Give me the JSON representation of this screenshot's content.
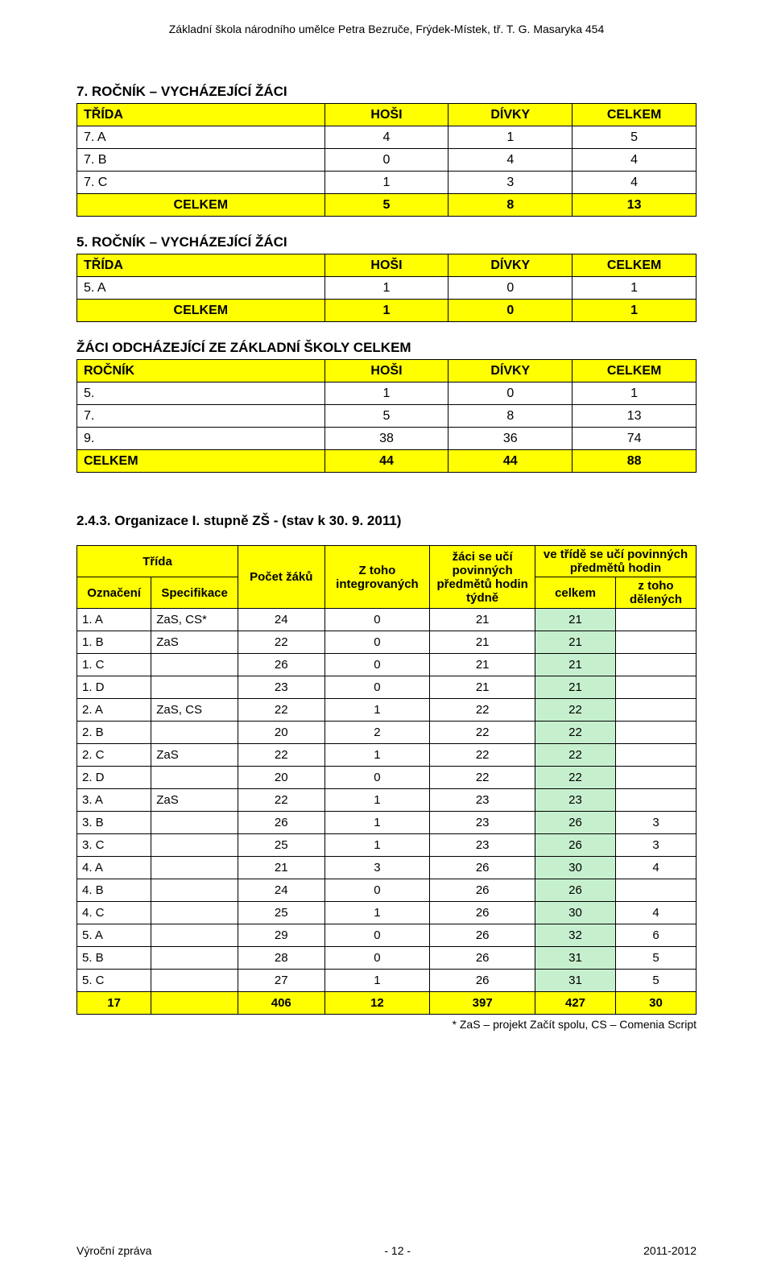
{
  "header": "Základní škola národního umělce Petra Bezruče, Frýdek-Místek, tř. T. G. Masaryka 454",
  "footer": {
    "left": "Výroční zpráva",
    "center": "- 12 -",
    "right": "2011-2012"
  },
  "colors": {
    "highlight": "#ffff00",
    "good": "#c6efce",
    "border": "#000000",
    "text": "#000000",
    "bg": "#ffffff"
  },
  "t7": {
    "title": "7. ROČNÍK – VYCHÁZEJÍCÍ ŽÁCI",
    "header_cells": [
      "TŘÍDA",
      "HOŠI",
      "DÍVKY",
      "CELKEM"
    ],
    "rows": [
      {
        "c": [
          "7. A",
          "4",
          "1",
          "5"
        ]
      },
      {
        "c": [
          "7. B",
          "0",
          "4",
          "4"
        ]
      },
      {
        "c": [
          "7. C",
          "1",
          "3",
          "4"
        ]
      }
    ],
    "total_row": [
      "CELKEM",
      "5",
      "8",
      "13"
    ]
  },
  "t5": {
    "title": "5. ROČNÍK – VYCHÁZEJÍCÍ ŽÁCI",
    "header_cells": [
      "TŘÍDA",
      "HOŠI",
      "DÍVKY",
      "CELKEM"
    ],
    "rows": [
      {
        "c": [
          "5. A",
          "1",
          "0",
          "1"
        ]
      }
    ],
    "total_row": [
      "CELKEM",
      "1",
      "0",
      "1"
    ]
  },
  "t_odch": {
    "title": "ŽÁCI ODCHÁZEJÍCÍ ZE ZÁKLADNÍ ŠKOLY CELKEM",
    "header_cells": [
      "ROČNÍK",
      "HOŠI",
      "DÍVKY",
      "CELKEM"
    ],
    "rows": [
      {
        "c": [
          "5.",
          "1",
          "0",
          "1"
        ]
      },
      {
        "c": [
          "7.",
          "5",
          "8",
          "13"
        ]
      },
      {
        "c": [
          "9.",
          "38",
          "36",
          "74"
        ]
      }
    ],
    "total_row": [
      "CELKEM",
      "44",
      "44",
      "88"
    ]
  },
  "org": {
    "title": "2.4.3. Organizace I. stupně ZŠ - (stav k 30. 9. 2011)",
    "h_trida": "Třída",
    "h_ozn": "Označení",
    "h_spec": "Specifikace",
    "h_pocet": "Počet žáků",
    "h_integ": "Z toho integrovaných",
    "h_zaci": "žáci se učí povinných předmětů hodin týdně",
    "h_group": "ve třídě se učí povinných předmětů hodin",
    "h_celkem": "celkem",
    "h_del": "z toho dělených",
    "rows": [
      {
        "c": [
          "1. A",
          "ZaS, CS*",
          "24",
          "0",
          "21",
          "21",
          ""
        ]
      },
      {
        "c": [
          "1. B",
          "ZaS",
          "22",
          "0",
          "21",
          "21",
          ""
        ]
      },
      {
        "c": [
          "1. C",
          "",
          "26",
          "0",
          "21",
          "21",
          ""
        ]
      },
      {
        "c": [
          "1. D",
          "",
          "23",
          "0",
          "21",
          "21",
          ""
        ]
      },
      {
        "c": [
          "2. A",
          "ZaS, CS",
          "22",
          "1",
          "22",
          "22",
          ""
        ]
      },
      {
        "c": [
          "2. B",
          "",
          "20",
          "2",
          "22",
          "22",
          ""
        ]
      },
      {
        "c": [
          "2. C",
          "ZaS",
          "22",
          "1",
          "22",
          "22",
          ""
        ]
      },
      {
        "c": [
          "2. D",
          "",
          "20",
          "0",
          "22",
          "22",
          ""
        ]
      },
      {
        "c": [
          "3. A",
          "ZaS",
          "22",
          "1",
          "23",
          "23",
          ""
        ]
      },
      {
        "c": [
          "3. B",
          "",
          "26",
          "1",
          "23",
          "26",
          "3"
        ]
      },
      {
        "c": [
          "3. C",
          "",
          "25",
          "1",
          "23",
          "26",
          "3"
        ]
      },
      {
        "c": [
          "4. A",
          "",
          "21",
          "3",
          "26",
          "30",
          "4"
        ]
      },
      {
        "c": [
          "4. B",
          "",
          "24",
          "0",
          "26",
          "26",
          ""
        ]
      },
      {
        "c": [
          "4. C",
          "",
          "25",
          "1",
          "26",
          "30",
          "4"
        ]
      },
      {
        "c": [
          "5. A",
          "",
          "29",
          "0",
          "26",
          "32",
          "6"
        ]
      },
      {
        "c": [
          "5. B",
          "",
          "28",
          "0",
          "26",
          "31",
          "5"
        ]
      },
      {
        "c": [
          "5. C",
          "",
          "27",
          "1",
          "26",
          "31",
          "5"
        ]
      }
    ],
    "total_row": [
      "17",
      "",
      "406",
      "12",
      "397",
      "427",
      "30"
    ],
    "footnote": "* ZaS – projekt Začít spolu, CS – Comenia Script"
  }
}
